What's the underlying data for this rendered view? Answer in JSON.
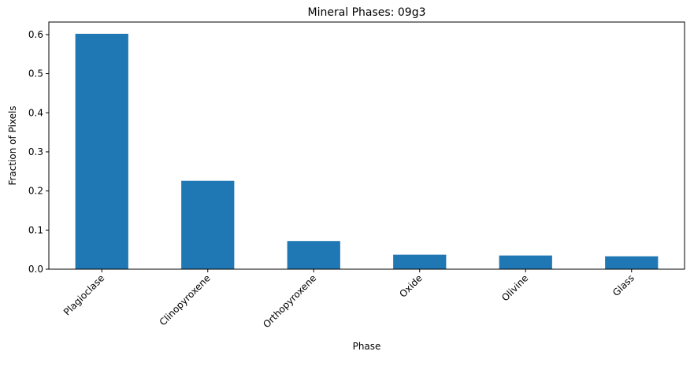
{
  "chart_data": {
    "type": "bar",
    "title": "Mineral Phases: 09g3",
    "xlabel": "Phase",
    "ylabel": "Fraction of Pixels",
    "categories": [
      "Plagioclase",
      "Clinopyroxene",
      "Orthopyroxene",
      "Oxide",
      "Olivine",
      "Glass"
    ],
    "values": [
      0.602,
      0.226,
      0.072,
      0.037,
      0.035,
      0.033
    ],
    "ylim": [
      0,
      0.632
    ],
    "yticks": [
      {
        "value": 0.0,
        "label": "0.0"
      },
      {
        "value": 0.1,
        "label": "0.1"
      },
      {
        "value": 0.2,
        "label": "0.2"
      },
      {
        "value": 0.3,
        "label": "0.3"
      },
      {
        "value": 0.4,
        "label": "0.4"
      },
      {
        "value": 0.5,
        "label": "0.5"
      },
      {
        "value": 0.6,
        "label": "0.6"
      }
    ],
    "grid": false,
    "legend": "none",
    "bar_color": "#1f77b4",
    "xtick_rotation_deg": 45
  }
}
